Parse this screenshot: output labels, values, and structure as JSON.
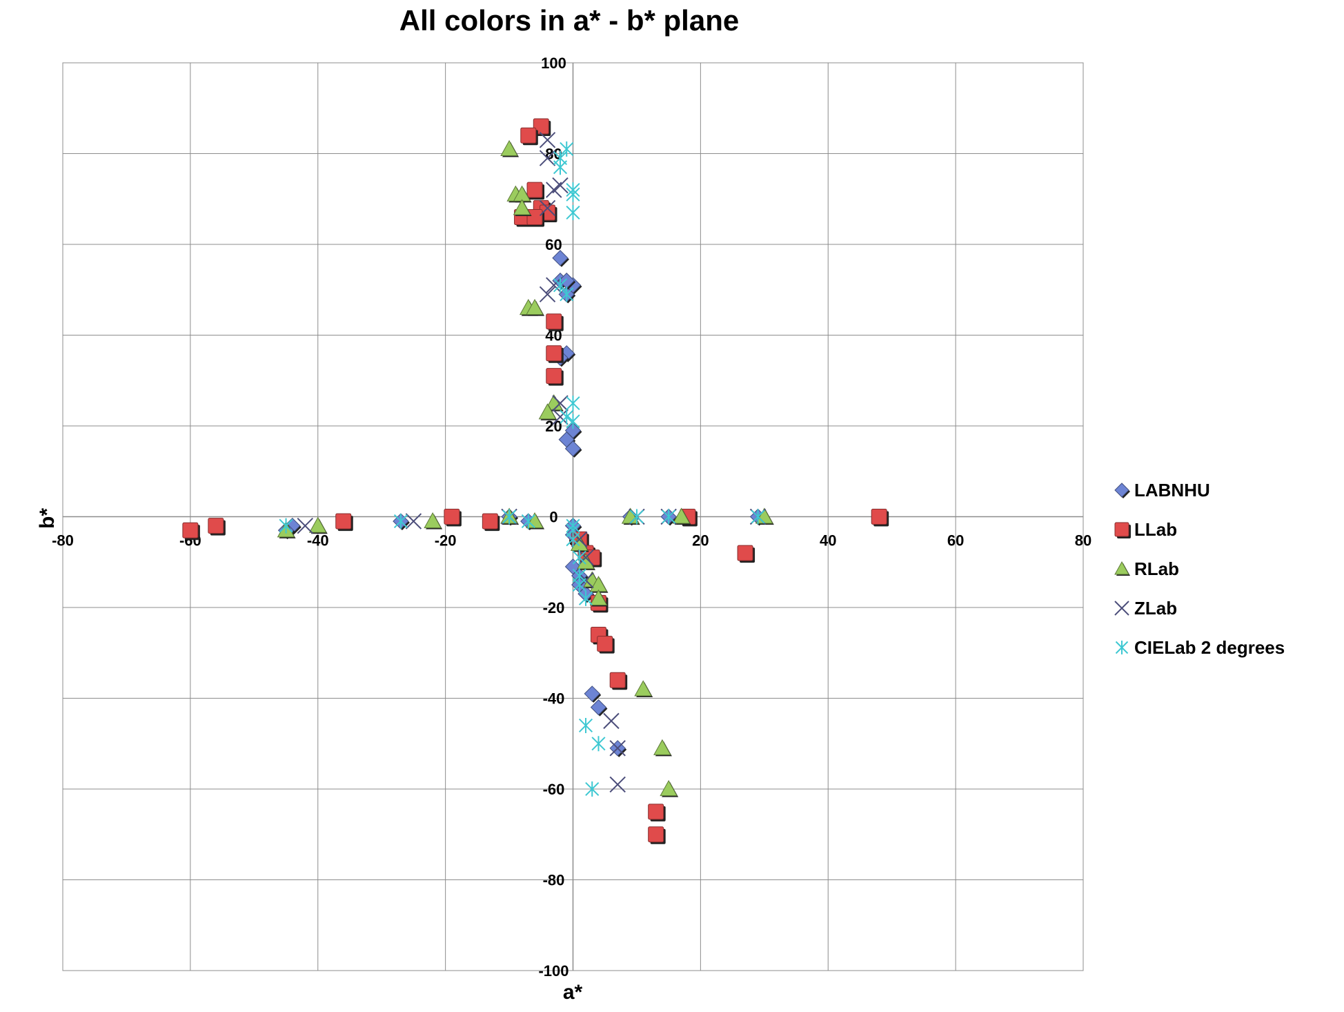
{
  "chart_data": {
    "type": "scatter",
    "title": "All colors in a* - b* plane",
    "xlabel": "a*",
    "ylabel": "b*",
    "xlim": [
      -80,
      80
    ],
    "ylim": [
      -100,
      100
    ],
    "x_ticks": [
      -80,
      -60,
      -40,
      -20,
      0,
      20,
      40,
      60,
      80
    ],
    "y_ticks": [
      -100,
      -80,
      -60,
      -40,
      -20,
      0,
      20,
      40,
      60,
      80,
      100
    ],
    "grid": true,
    "legend_position": "right",
    "series": [
      {
        "name": "LABNHU",
        "marker": "diamond",
        "color": "#6d84d4",
        "points": [
          [
            -2,
            57
          ],
          [
            -2,
            52
          ],
          [
            0,
            51
          ],
          [
            -1,
            49
          ],
          [
            -1,
            52
          ],
          [
            -1,
            36
          ],
          [
            -2,
            35
          ],
          [
            0,
            19
          ],
          [
            -1,
            17
          ],
          [
            0,
            15
          ],
          [
            -27,
            -1
          ],
          [
            -44,
            -2
          ],
          [
            -45,
            -3
          ],
          [
            -10,
            0
          ],
          [
            -7,
            -1
          ],
          [
            9,
            0
          ],
          [
            15,
            0
          ],
          [
            29,
            0
          ],
          [
            0,
            -2
          ],
          [
            0,
            -4
          ],
          [
            0,
            -11
          ],
          [
            1,
            -13
          ],
          [
            1,
            -15
          ],
          [
            2,
            -17
          ],
          [
            3,
            -39
          ],
          [
            4,
            -42
          ],
          [
            7,
            -51
          ]
        ]
      },
      {
        "name": "LLab",
        "marker": "square",
        "color": "#e04b4b",
        "points": [
          [
            -5,
            86
          ],
          [
            -7,
            84
          ],
          [
            -6,
            72
          ],
          [
            -5,
            68
          ],
          [
            -4,
            67
          ],
          [
            -8,
            66
          ],
          [
            -6,
            66
          ],
          [
            -3,
            43
          ],
          [
            -3,
            36
          ],
          [
            -3,
            31
          ],
          [
            -60,
            -3
          ],
          [
            -56,
            -2
          ],
          [
            -36,
            -1
          ],
          [
            -19,
            0
          ],
          [
            -13,
            -1
          ],
          [
            18,
            0
          ],
          [
            48,
            0
          ],
          [
            27,
            -8
          ],
          [
            1,
            -5
          ],
          [
            2,
            -8
          ],
          [
            3,
            -9
          ],
          [
            4,
            -19
          ],
          [
            4,
            -26
          ],
          [
            5,
            -28
          ],
          [
            7,
            -36
          ],
          [
            13,
            -65
          ],
          [
            13,
            -70
          ]
        ]
      },
      {
        "name": "RLab",
        "marker": "triangle",
        "color": "#9bcc5e",
        "points": [
          [
            -10,
            81
          ],
          [
            -9,
            71
          ],
          [
            -8,
            71
          ],
          [
            -8,
            68
          ],
          [
            -7,
            46
          ],
          [
            -6,
            46
          ],
          [
            -3,
            25
          ],
          [
            -4,
            23
          ],
          [
            -45,
            -3
          ],
          [
            -40,
            -2
          ],
          [
            -22,
            -1
          ],
          [
            -10,
            0
          ],
          [
            -6,
            -1
          ],
          [
            9,
            0
          ],
          [
            17,
            0
          ],
          [
            30,
            0
          ],
          [
            1,
            -6
          ],
          [
            2,
            -10
          ],
          [
            3,
            -14
          ],
          [
            4,
            -15
          ],
          [
            4,
            -18
          ],
          [
            11,
            -38
          ],
          [
            14,
            -51
          ],
          [
            15,
            -60
          ]
        ]
      },
      {
        "name": "ZLab",
        "marker": "x",
        "color": "#4b4d7a",
        "points": [
          [
            -4,
            83
          ],
          [
            -4,
            79
          ],
          [
            -2,
            73
          ],
          [
            -3,
            72
          ],
          [
            -4,
            68
          ],
          [
            -3,
            51
          ],
          [
            -4,
            49
          ],
          [
            -2,
            25
          ],
          [
            -2,
            22
          ],
          [
            -42,
            -2
          ],
          [
            -25,
            -1
          ],
          [
            -10,
            0
          ],
          [
            10,
            0
          ],
          [
            15,
            0
          ],
          [
            29,
            0
          ],
          [
            1,
            -5
          ],
          [
            2,
            -9
          ],
          [
            2,
            -14
          ],
          [
            6,
            -45
          ],
          [
            7,
            -51
          ],
          [
            7,
            -59
          ]
        ]
      },
      {
        "name": "CIELab 2 degrees",
        "marker": "asterisk",
        "color": "#3ec8d2",
        "points": [
          [
            -1,
            81
          ],
          [
            -2,
            79
          ],
          [
            -2,
            77
          ],
          [
            0,
            72
          ],
          [
            0,
            71
          ],
          [
            0,
            67
          ],
          [
            -2,
            51
          ],
          [
            -1,
            49
          ],
          [
            0,
            25
          ],
          [
            -1,
            22
          ],
          [
            0,
            21
          ],
          [
            -45,
            -2
          ],
          [
            -27,
            -1
          ],
          [
            -10,
            0
          ],
          [
            -7,
            -1
          ],
          [
            10,
            0
          ],
          [
            15,
            0
          ],
          [
            29,
            0
          ],
          [
            0,
            -2
          ],
          [
            0,
            -3
          ],
          [
            0,
            -5
          ],
          [
            1,
            -9
          ],
          [
            1,
            -13
          ],
          [
            1,
            -15
          ],
          [
            2,
            -18
          ],
          [
            2,
            -46
          ],
          [
            4,
            -50
          ],
          [
            3,
            -60
          ]
        ]
      }
    ]
  }
}
